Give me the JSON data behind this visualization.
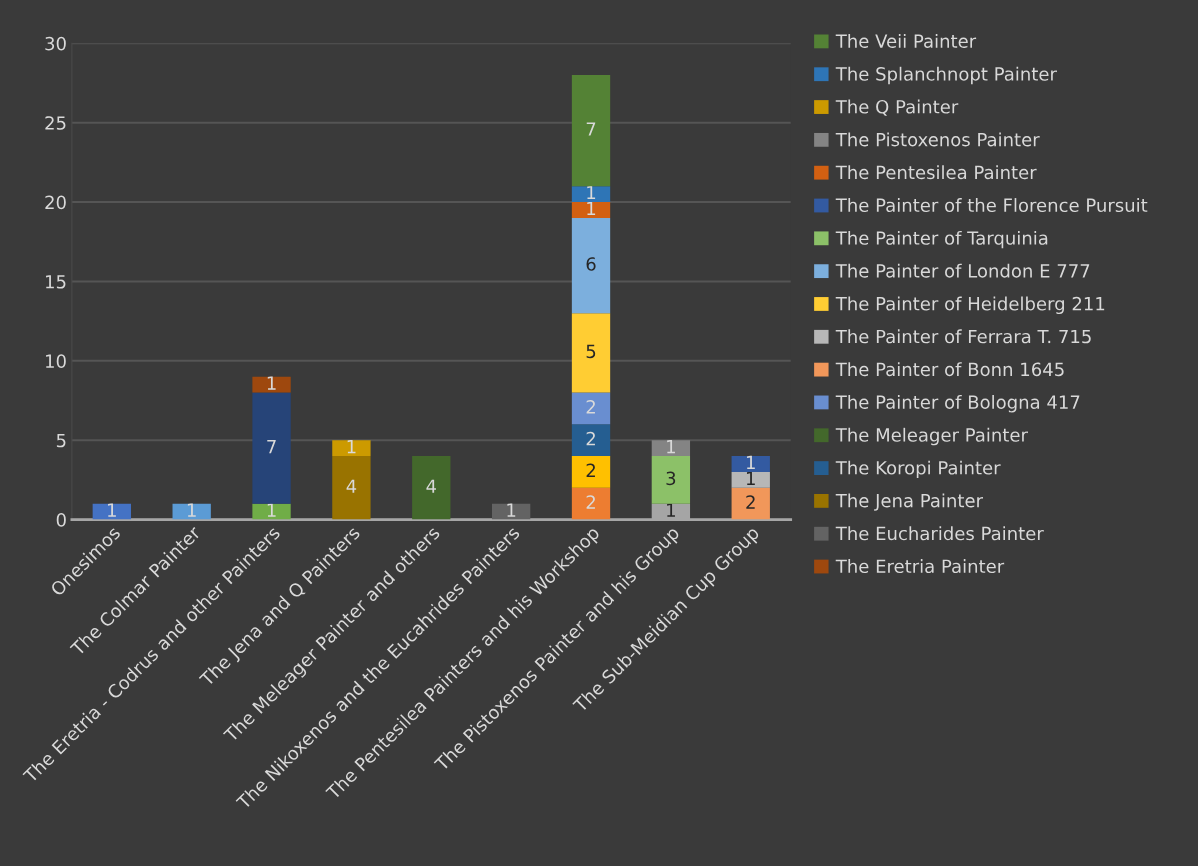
{
  "chart_data": {
    "type": "bar",
    "stacked": true,
    "categories": [
      "Onesimos",
      "The Colmar Painter",
      "The Eretria - Codrus and other Painters",
      "The Jena and Q Painters",
      "The Meleager Painter and others",
      "The Nikoxenos and the Eucahrides Painters",
      "The Pentesilea Painters and his Workshop",
      "The Pistoxenos Painter and his Group",
      "The Sub-Meidian Cup Group"
    ],
    "ylim": [
      0,
      30
    ],
    "yticks": [
      0,
      5,
      10,
      15,
      20,
      25,
      30
    ],
    "grid": "y",
    "legend": "right",
    "data_labels": true,
    "series": [
      {
        "color": "#4472c4",
        "values": [
          1,
          null,
          null,
          null,
          null,
          null,
          null,
          null,
          null
        ]
      },
      {
        "color": "#ed7d31",
        "values": [
          null,
          null,
          null,
          null,
          null,
          null,
          2,
          null,
          null
        ]
      },
      {
        "color": "#a5a5a5",
        "values": [
          null,
          null,
          null,
          null,
          null,
          null,
          null,
          1,
          null
        ]
      },
      {
        "color": "#ffc000",
        "values": [
          null,
          null,
          null,
          null,
          null,
          null,
          2,
          null,
          null
        ]
      },
      {
        "color": "#5b9bd5",
        "values": [
          null,
          1,
          null,
          null,
          null,
          null,
          null,
          null,
          null
        ]
      },
      {
        "color": "#70ad47",
        "values": [
          null,
          null,
          1,
          null,
          null,
          null,
          null,
          null,
          null
        ]
      },
      {
        "color": "#264478",
        "values": [
          null,
          null,
          7,
          null,
          null,
          null,
          null,
          null,
          null
        ]
      },
      {
        "name": "The Eretria Painter",
        "color": "#9e480e",
        "values": [
          null,
          null,
          1,
          null,
          null,
          null,
          null,
          null,
          null
        ]
      },
      {
        "name": "The Eucharides Painter",
        "color": "#636363",
        "values": [
          null,
          null,
          null,
          null,
          null,
          1,
          null,
          null,
          null
        ]
      },
      {
        "name": "The Jena Painter",
        "color": "#997300",
        "values": [
          null,
          null,
          null,
          4,
          null,
          null,
          null,
          null,
          null
        ]
      },
      {
        "name": "The Koropi Painter",
        "color": "#255e91",
        "values": [
          null,
          null,
          null,
          null,
          null,
          null,
          2,
          null,
          null
        ]
      },
      {
        "name": "The Meleager Painter",
        "color": "#43682b",
        "values": [
          null,
          null,
          null,
          null,
          4,
          null,
          null,
          null,
          null
        ]
      },
      {
        "name": "The Painter of Bologna 417",
        "color": "#698ed0",
        "values": [
          null,
          null,
          null,
          null,
          null,
          null,
          2,
          null,
          null
        ]
      },
      {
        "name": "The Painter of Bonn 1645",
        "color": "#f1975a",
        "values": [
          null,
          null,
          null,
          null,
          null,
          null,
          null,
          null,
          2
        ]
      },
      {
        "name": "The Painter of Ferrara T. 715",
        "color": "#b7b7b7",
        "values": [
          null,
          null,
          null,
          null,
          null,
          null,
          null,
          null,
          1
        ]
      },
      {
        "name": "The Painter of Heidelberg 211",
        "color": "#ffcd33",
        "values": [
          null,
          null,
          null,
          null,
          null,
          null,
          5,
          null,
          null
        ]
      },
      {
        "name": "The Painter of London E 777",
        "color": "#7cafdd",
        "values": [
          null,
          null,
          null,
          null,
          null,
          null,
          6,
          null,
          null
        ]
      },
      {
        "name": "The Painter of Tarquinia",
        "color": "#8cc168",
        "values": [
          null,
          null,
          null,
          null,
          null,
          null,
          null,
          3,
          null
        ]
      },
      {
        "name": "The Painter of the Florence Pursuit",
        "color": "#335aa1",
        "values": [
          null,
          null,
          null,
          null,
          null,
          null,
          null,
          null,
          1
        ]
      },
      {
        "name": "The Pentesilea Painter",
        "color": "#d26012",
        "values": [
          null,
          null,
          null,
          null,
          null,
          null,
          1,
          null,
          null
        ]
      },
      {
        "name": "The Pistoxenos Painter",
        "color": "#848484",
        "values": [
          null,
          null,
          null,
          null,
          null,
          null,
          null,
          1,
          null
        ]
      },
      {
        "name": "The Q Painter",
        "color": "#cc9a00",
        "values": [
          null,
          null,
          null,
          1,
          null,
          null,
          null,
          null,
          null
        ]
      },
      {
        "name": "The Splanchnopt Painter",
        "color": "#2e75b6",
        "values": [
          null,
          null,
          null,
          null,
          null,
          null,
          1,
          null,
          null
        ]
      },
      {
        "name": "The Veii Painter",
        "color": "#548235",
        "values": [
          null,
          null,
          null,
          null,
          null,
          null,
          7,
          null,
          null
        ]
      }
    ]
  }
}
